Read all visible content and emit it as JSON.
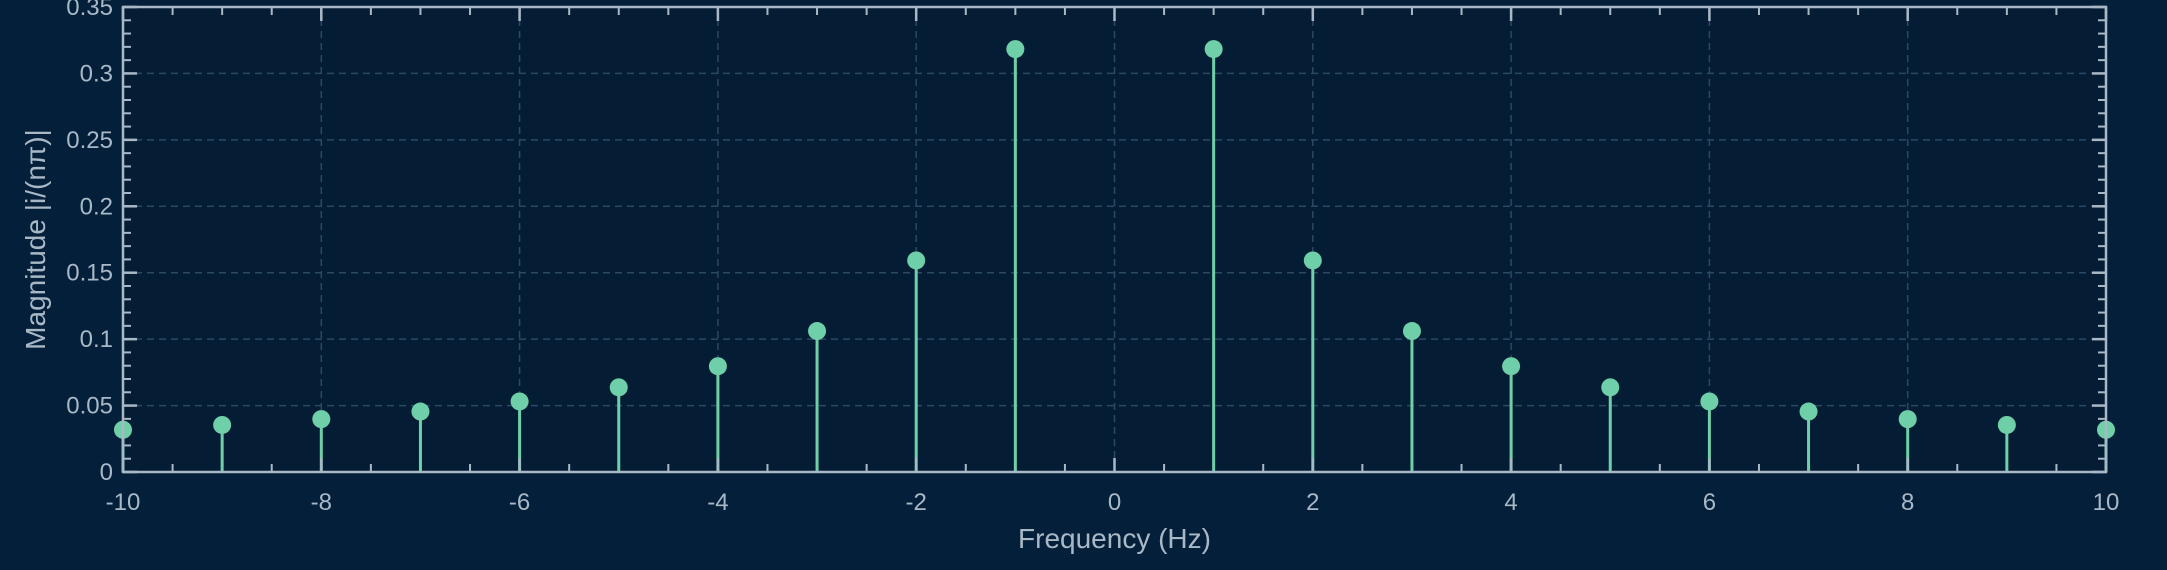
{
  "chart_data": {
    "type": "stem",
    "xlabel": "Frequency (Hz)",
    "ylabel": "Magnitude |i/(nπ)|",
    "xlim": [
      -10,
      10
    ],
    "ylim": [
      0,
      0.35
    ],
    "xticks": [
      -10,
      -8,
      -6,
      -4,
      -2,
      0,
      2,
      4,
      6,
      8,
      10
    ],
    "yticks": [
      0,
      0.05,
      0.1,
      0.15,
      0.2,
      0.25,
      0.3,
      0.35
    ],
    "x": [
      -10,
      -9,
      -8,
      -7,
      -6,
      -5,
      -4,
      -3,
      -2,
      -1,
      1,
      2,
      3,
      4,
      5,
      6,
      7,
      8,
      9,
      10
    ],
    "y": [
      0.0318,
      0.0354,
      0.0398,
      0.0455,
      0.0531,
      0.0637,
      0.0796,
      0.1061,
      0.1592,
      0.3183,
      0.3183,
      0.1592,
      0.1061,
      0.0796,
      0.0637,
      0.0531,
      0.0455,
      0.0398,
      0.0354,
      0.0318
    ],
    "grid": true,
    "colors": {
      "background": "#031f39",
      "plot_area": "#041d34",
      "axis": "#a9b8c6",
      "grid": "#2a4963",
      "stem": "#6fcfa8"
    }
  }
}
